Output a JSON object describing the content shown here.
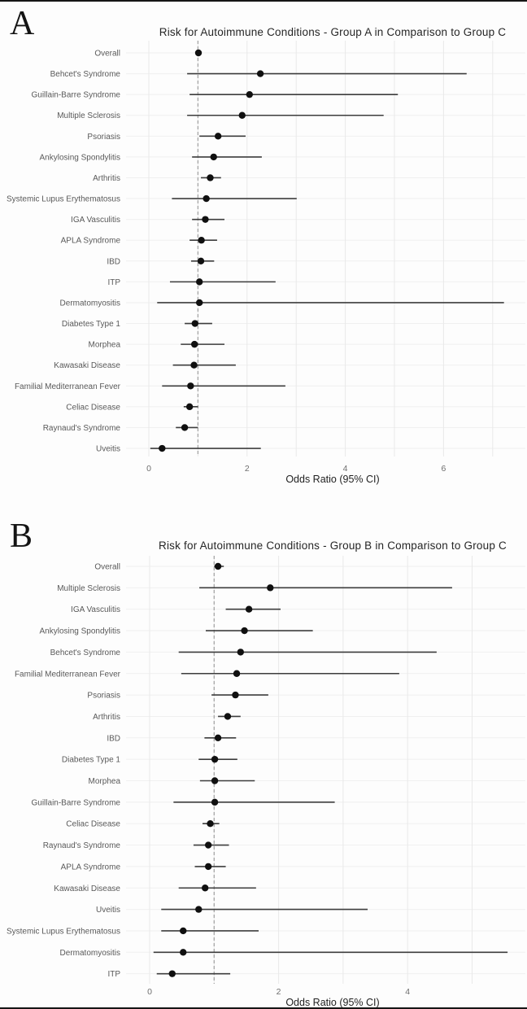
{
  "chart_data": [
    {
      "type": "scatter",
      "subtype": "forest_plot",
      "panel_label": "A",
      "title": "Risk for Autoimmune Conditions - Group A in Comparison to Group C",
      "xlabel": "Odds Ratio (95% CI)",
      "x_ticks": [
        0,
        2,
        4,
        6
      ],
      "x_gridlines": [
        0,
        1,
        2,
        3,
        4,
        5,
        6,
        7
      ],
      "xlim": [
        -0.45,
        7.65
      ],
      "ref_line": 1,
      "legend": "none",
      "grid": true,
      "rows": [
        {
          "label": "Overall",
          "or": 1.01,
          "lo": 0.97,
          "hi": 1.06
        },
        {
          "label": "Behcet's Syndrome",
          "or": 2.27,
          "lo": 0.78,
          "hi": 6.47
        },
        {
          "label": "Guillain-Barre Syndrome",
          "or": 2.05,
          "lo": 0.83,
          "hi": 5.07
        },
        {
          "label": "Multiple Sclerosis",
          "or": 1.9,
          "lo": 0.78,
          "hi": 4.78
        },
        {
          "label": "Psoriasis",
          "or": 1.41,
          "lo": 1.03,
          "hi": 1.97
        },
        {
          "label": "Ankylosing Spondylitis",
          "or": 1.32,
          "lo": 0.88,
          "hi": 2.3
        },
        {
          "label": "Arthritis",
          "or": 1.25,
          "lo": 1.06,
          "hi": 1.47
        },
        {
          "label": "Systemic Lupus Erythematosus",
          "or": 1.17,
          "lo": 0.47,
          "hi": 3.01
        },
        {
          "label": "IGA Vasculitis",
          "or": 1.15,
          "lo": 0.88,
          "hi": 1.54
        },
        {
          "label": "APLA Syndrome",
          "or": 1.07,
          "lo": 0.83,
          "hi": 1.39
        },
        {
          "label": "IBD",
          "or": 1.06,
          "lo": 0.86,
          "hi": 1.33
        },
        {
          "label": "ITP",
          "or": 1.03,
          "lo": 0.43,
          "hi": 2.58
        },
        {
          "label": "Dermatomyositis",
          "or": 1.03,
          "lo": 0.17,
          "hi": 7.23
        },
        {
          "label": "Diabetes Type 1",
          "or": 0.94,
          "lo": 0.73,
          "hi": 1.29
        },
        {
          "label": "Morphea",
          "or": 0.93,
          "lo": 0.65,
          "hi": 1.54
        },
        {
          "label": "Kawasaki Disease",
          "or": 0.92,
          "lo": 0.49,
          "hi": 1.77
        },
        {
          "label": "Familial Mediterranean Fever",
          "or": 0.85,
          "lo": 0.27,
          "hi": 2.78
        },
        {
          "label": "Celiac Disease",
          "or": 0.83,
          "lo": 0.71,
          "hi": 1.0
        },
        {
          "label": "Raynaud's Syndrome",
          "or": 0.73,
          "lo": 0.55,
          "hi": 1.0
        },
        {
          "label": "Uveitis",
          "or": 0.27,
          "lo": 0.03,
          "hi": 2.28
        }
      ]
    },
    {
      "type": "scatter",
      "subtype": "forest_plot",
      "panel_label": "B",
      "title": "Risk for Autoimmune Conditions - Group B in Comparison to Group C",
      "xlabel": "Odds Ratio (95% CI)",
      "x_ticks": [
        0,
        2,
        4
      ],
      "x_gridlines": [
        0,
        1,
        2,
        3,
        4,
        5
      ],
      "xlim": [
        -0.4,
        5.85
      ],
      "ref_line": 1,
      "legend": "none",
      "grid": true,
      "rows": [
        {
          "label": "Overall",
          "or": 1.06,
          "lo": 1.0,
          "hi": 1.15
        },
        {
          "label": "Multiple Sclerosis",
          "or": 1.87,
          "lo": 0.77,
          "hi": 4.69
        },
        {
          "label": "IGA Vasculitis",
          "or": 1.54,
          "lo": 1.18,
          "hi": 2.03
        },
        {
          "label": "Ankylosing Spondylitis",
          "or": 1.47,
          "lo": 0.87,
          "hi": 2.53
        },
        {
          "label": "Behcet's Syndrome",
          "or": 1.41,
          "lo": 0.45,
          "hi": 4.45
        },
        {
          "label": "Familial Mediterranean Fever",
          "or": 1.35,
          "lo": 0.49,
          "hi": 3.87
        },
        {
          "label": "Psoriasis",
          "or": 1.33,
          "lo": 0.96,
          "hi": 1.84
        },
        {
          "label": "Arthritis",
          "or": 1.21,
          "lo": 1.06,
          "hi": 1.41
        },
        {
          "label": "IBD",
          "or": 1.06,
          "lo": 0.85,
          "hi": 1.34
        },
        {
          "label": "Diabetes Type 1",
          "or": 1.01,
          "lo": 0.76,
          "hi": 1.36
        },
        {
          "label": "Morphea",
          "or": 1.01,
          "lo": 0.78,
          "hi": 1.63
        },
        {
          "label": "Guillain-Barre Syndrome",
          "or": 1.01,
          "lo": 0.37,
          "hi": 2.87
        },
        {
          "label": "Celiac Disease",
          "or": 0.94,
          "lo": 0.82,
          "hi": 1.08
        },
        {
          "label": "Raynaud's Syndrome",
          "or": 0.91,
          "lo": 0.68,
          "hi": 1.23
        },
        {
          "label": "APLA Syndrome",
          "or": 0.91,
          "lo": 0.7,
          "hi": 1.18
        },
        {
          "label": "Kawasaki Disease",
          "or": 0.86,
          "lo": 0.45,
          "hi": 1.65
        },
        {
          "label": "Uveitis",
          "or": 0.76,
          "lo": 0.18,
          "hi": 3.38
        },
        {
          "label": "Systemic Lupus Erythematosus",
          "or": 0.52,
          "lo": 0.18,
          "hi": 1.69
        },
        {
          "label": "Dermatomyositis",
          "or": 0.52,
          "lo": 0.06,
          "hi": 5.55
        },
        {
          "label": "ITP",
          "or": 0.35,
          "lo": 0.11,
          "hi": 1.25
        }
      ]
    }
  ],
  "colors": {
    "point": "#101010",
    "ci_line": "#3d3d3d",
    "grid_vertical": "#e9e9e9",
    "grid_horizontal": "#f0f0f0",
    "ref_line": "#a6a6a6",
    "label_text": "#595959",
    "tick_text": "#6e6e6e",
    "title_text": "#262626"
  }
}
